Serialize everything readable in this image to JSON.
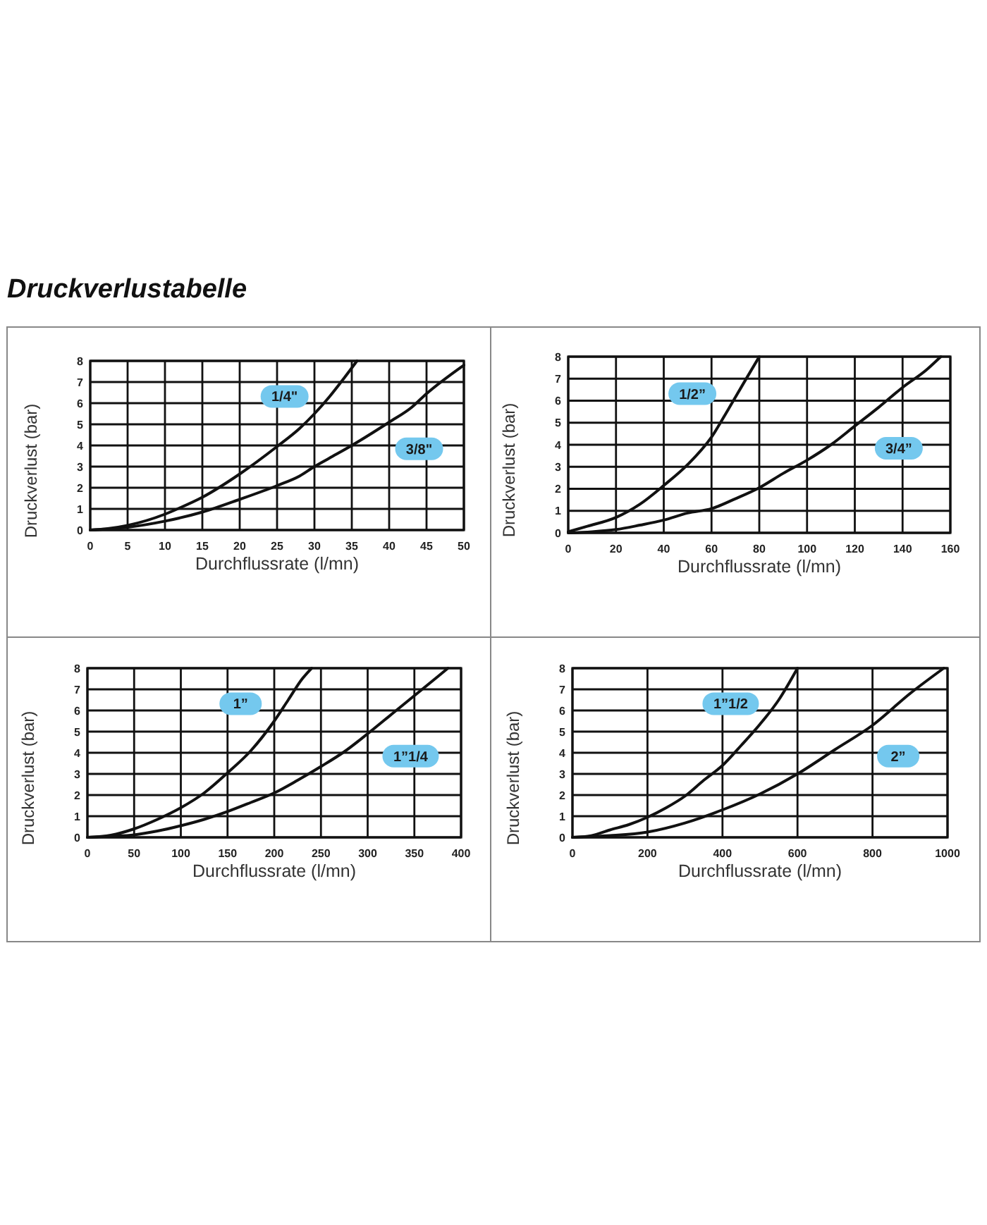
{
  "chart_data": [
    {
      "type": "line",
      "title": "Druckverlustabelle",
      "xlabel": "Durchflussrate (l/mn)",
      "ylabel": "Druckverlust (bar)",
      "xlim": [
        0,
        50
      ],
      "ylim": [
        0,
        8
      ],
      "xticks": [
        0,
        5,
        10,
        15,
        20,
        25,
        30,
        35,
        40,
        45,
        50
      ],
      "yticks": [
        0,
        1,
        2,
        3,
        4,
        5,
        6,
        7,
        8
      ],
      "grid": true,
      "series": [
        {
          "name": "1/4\"",
          "color": "#111111",
          "x": [
            0,
            2,
            5,
            10,
            12,
            15,
            20,
            25,
            28,
            30,
            32,
            34,
            35.7
          ],
          "values": [
            0,
            0.05,
            0.22,
            0.75,
            1.05,
            1.55,
            2.65,
            3.95,
            4.8,
            5.5,
            6.3,
            7.2,
            8
          ]
        },
        {
          "name": "3/8\"",
          "color": "#111111",
          "x": [
            0,
            5,
            10,
            15,
            20,
            25,
            28,
            30,
            32,
            35,
            40,
            43,
            45,
            50
          ],
          "values": [
            0,
            0.13,
            0.42,
            0.85,
            1.45,
            2.1,
            2.55,
            3.0,
            3.4,
            4.0,
            5.1,
            5.8,
            6.45,
            7.8
          ]
        }
      ]
    },
    {
      "type": "line",
      "xlabel": "Durchflussrate (l/mn)",
      "ylabel": "Druckverlust (bar)",
      "xlim": [
        0,
        160
      ],
      "ylim": [
        0,
        8
      ],
      "xticks": [
        0,
        20,
        40,
        60,
        80,
        100,
        120,
        140,
        160
      ],
      "yticks": [
        0,
        1,
        2,
        3,
        4,
        5,
        6,
        7,
        8
      ],
      "grid": true,
      "series": [
        {
          "name": "1/2”",
          "color": "#111111",
          "x": [
            0,
            8,
            20,
            30,
            40,
            50,
            60,
            67,
            74,
            80
          ],
          "values": [
            0.05,
            0.3,
            0.7,
            1.3,
            2.15,
            3.1,
            4.35,
            5.6,
            6.9,
            8
          ]
        },
        {
          "name": "3/4”",
          "color": "#111111",
          "x": [
            0,
            10,
            20,
            30,
            40,
            50,
            60,
            70,
            80,
            90,
            100,
            110,
            120,
            130,
            140,
            150,
            156
          ],
          "values": [
            0,
            0.05,
            0.15,
            0.35,
            0.58,
            0.9,
            1.1,
            1.55,
            2.05,
            2.7,
            3.3,
            4.0,
            4.85,
            5.7,
            6.6,
            7.4,
            8
          ]
        }
      ]
    },
    {
      "type": "line",
      "xlabel": "Durchflussrate (l/mn)",
      "ylabel": "Druckverlust (bar)",
      "xlim": [
        0,
        400
      ],
      "ylim": [
        0,
        8
      ],
      "xticks": [
        0,
        50,
        100,
        150,
        200,
        250,
        300,
        350,
        400
      ],
      "yticks": [
        0,
        1,
        2,
        3,
        4,
        5,
        6,
        7,
        8
      ],
      "grid": true,
      "series": [
        {
          "name": "1”",
          "color": "#111111",
          "x": [
            0,
            25,
            50,
            75,
            100,
            125,
            150,
            175,
            200,
            215,
            230,
            240
          ],
          "values": [
            0,
            0.1,
            0.4,
            0.85,
            1.4,
            2.1,
            3.05,
            4.1,
            5.5,
            6.5,
            7.5,
            8
          ]
        },
        {
          "name": "1”1/4",
          "color": "#111111",
          "x": [
            0,
            25,
            50,
            75,
            100,
            125,
            150,
            175,
            200,
            225,
            250,
            275,
            300,
            325,
            350,
            375,
            386
          ],
          "values": [
            0,
            0.05,
            0.12,
            0.3,
            0.55,
            0.85,
            1.22,
            1.65,
            2.1,
            2.7,
            3.35,
            4.05,
            4.9,
            5.8,
            6.7,
            7.6,
            8
          ]
        }
      ]
    },
    {
      "type": "line",
      "xlabel": "Durchflussrate (l/mn)",
      "ylabel": "Druckverlust (bar)",
      "xlim": [
        0,
        1000
      ],
      "ylim": [
        0,
        8
      ],
      "xticks": [
        0,
        200,
        400,
        600,
        800,
        1000
      ],
      "yticks": [
        0,
        1,
        2,
        3,
        4,
        5,
        6,
        7,
        8
      ],
      "grid": true,
      "series": [
        {
          "name": "1”1/2",
          "color": "#111111",
          "x": [
            0,
            50,
            100,
            150,
            200,
            250,
            300,
            350,
            400,
            450,
            500,
            550,
            600
          ],
          "values": [
            0,
            0.08,
            0.35,
            0.6,
            0.95,
            1.4,
            1.95,
            2.7,
            3.4,
            4.35,
            5.35,
            6.5,
            8
          ]
        },
        {
          "name": "2”",
          "color": "#111111",
          "x": [
            0,
            100,
            200,
            300,
            400,
            500,
            600,
            700,
            800,
            900,
            990
          ],
          "values": [
            0,
            0.08,
            0.25,
            0.68,
            1.3,
            2.05,
            3.0,
            4.15,
            5.3,
            6.8,
            8
          ]
        }
      ]
    }
  ]
}
